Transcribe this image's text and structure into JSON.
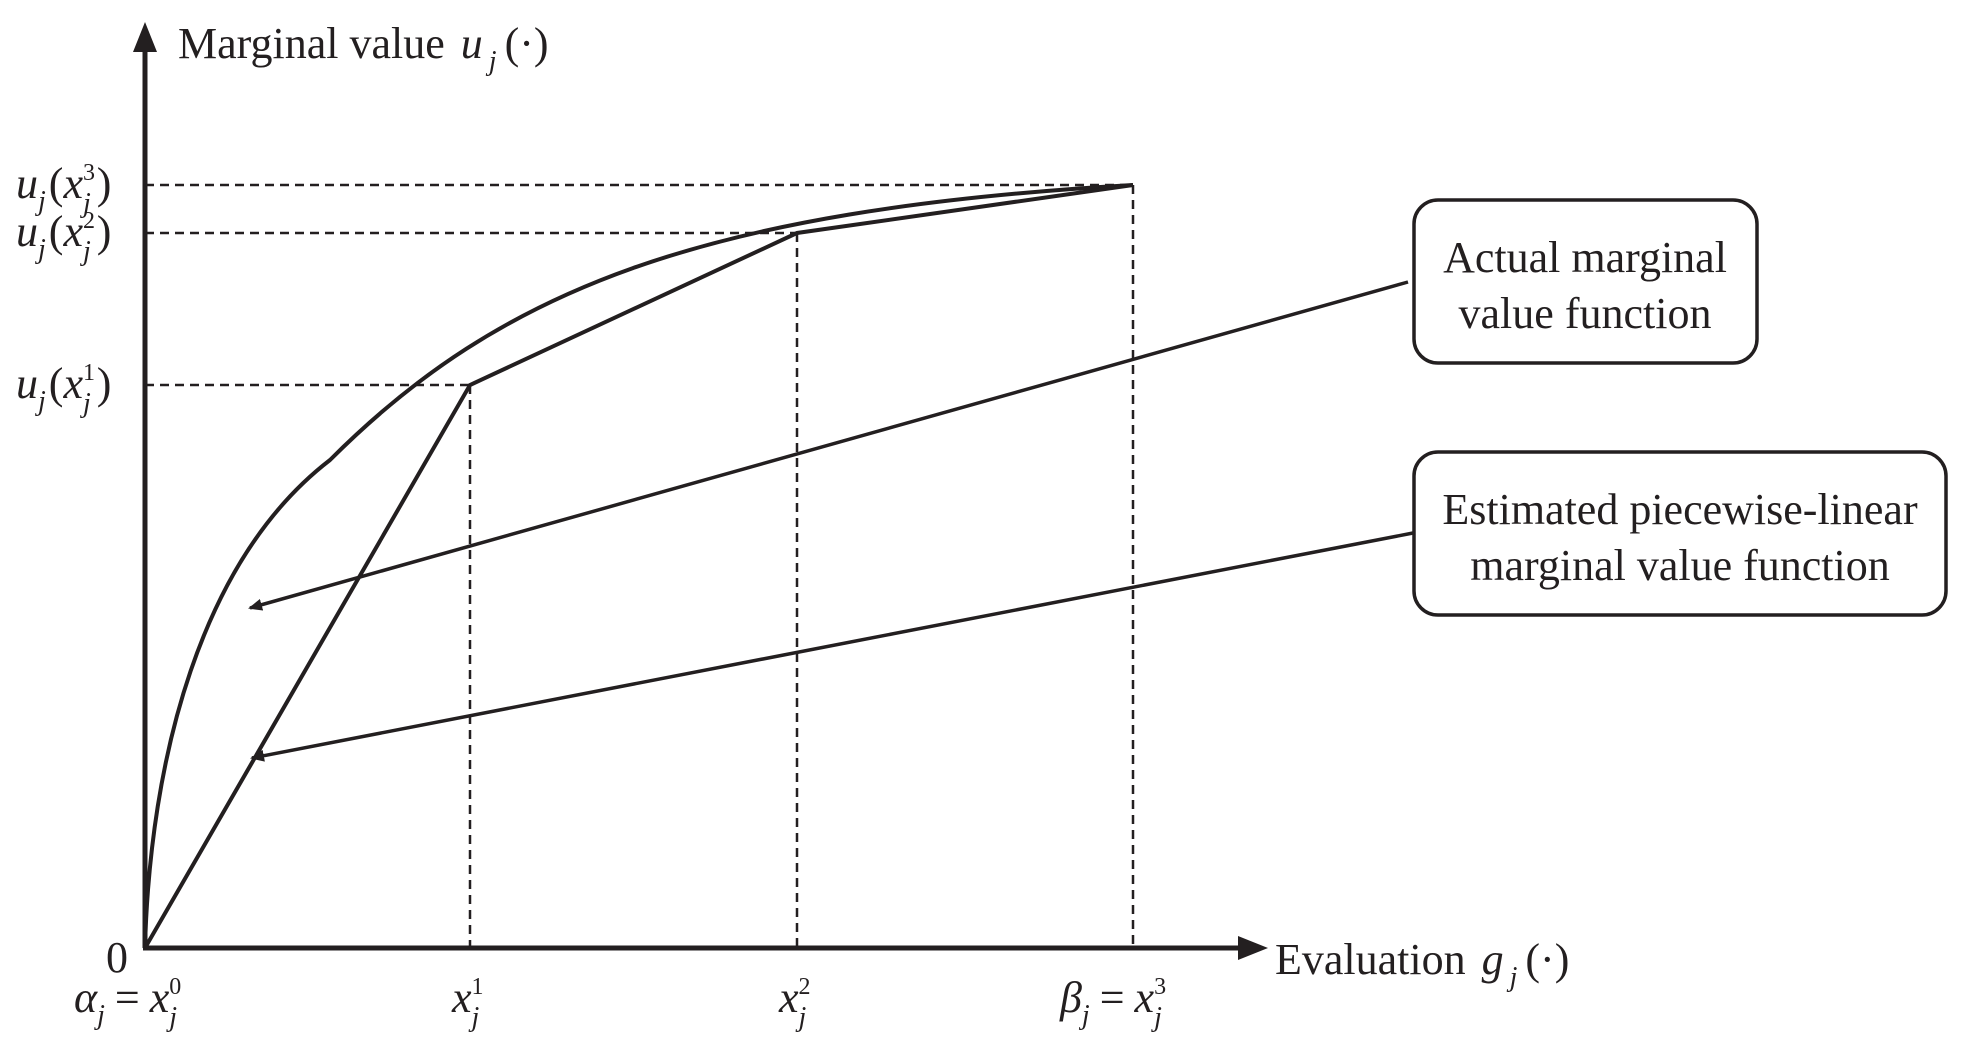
{
  "axes": {
    "y_label": "Marginal value",
    "x_label": "Evaluation",
    "y_func": "u",
    "x_func": "g",
    "index": "j",
    "arg": "(·)",
    "origin": "0"
  },
  "x_ticks": {
    "alpha": "α",
    "beta": "β",
    "var": "x",
    "eq": "=",
    "levels": [
      "0",
      "1",
      "2",
      "3"
    ]
  },
  "y_ticks": {
    "func": "u",
    "var": "x",
    "open": "(",
    "close": ")",
    "levels": [
      "1",
      "2",
      "3"
    ]
  },
  "callouts": [
    {
      "lines": [
        "Actual marginal",
        "value function"
      ]
    },
    {
      "lines": [
        "Estimated piecewise-linear",
        "marginal value function"
      ]
    }
  ],
  "colors": {
    "ink": "#231f20",
    "background": "#ffffff"
  }
}
